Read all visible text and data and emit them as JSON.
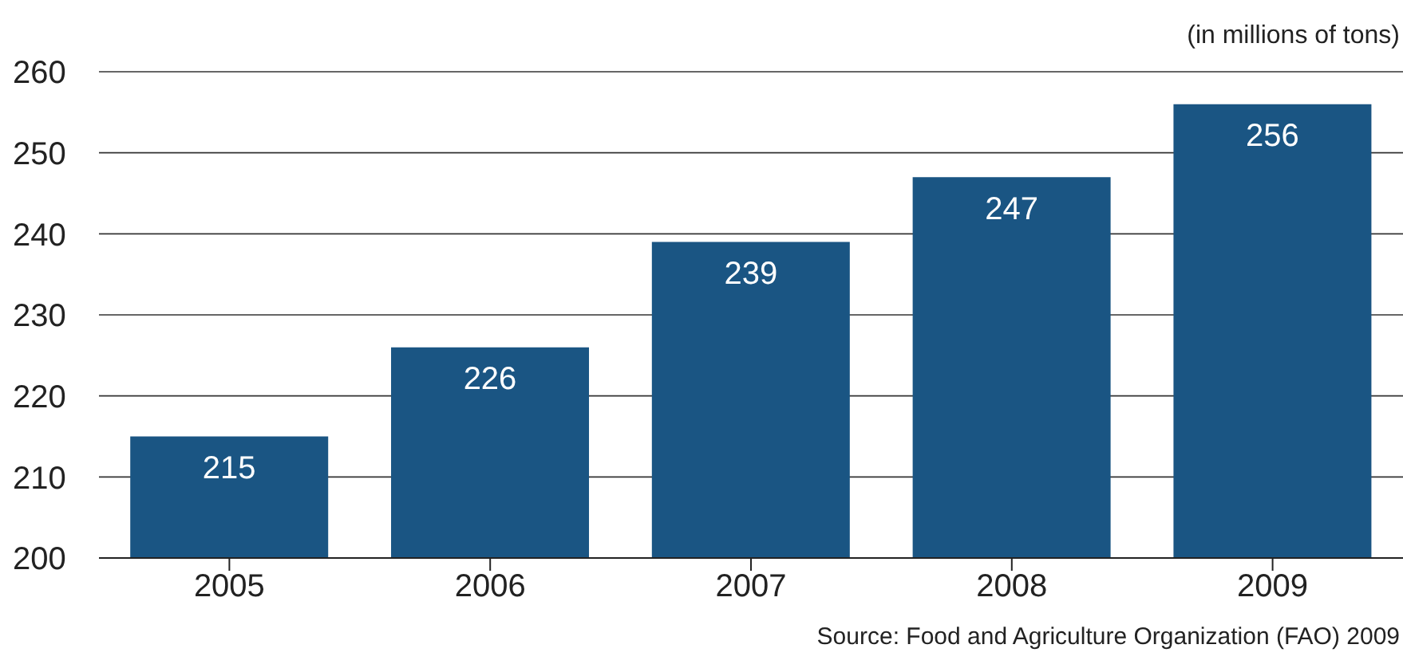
{
  "chart_data": {
    "type": "bar",
    "ylabel": "(in millions of tons)",
    "categories": [
      "2005",
      "2006",
      "2007",
      "2008",
      "2009"
    ],
    "values": [
      215,
      226,
      239,
      247,
      256
    ],
    "color": "#1a5583",
    "ylim": [
      200,
      260
    ],
    "yticks": [
      200,
      210,
      220,
      230,
      240,
      250,
      260
    ],
    "grid": "y",
    "data_labels": true,
    "annotations": [
      "Source: Food and Agriculture Organization (FAO) 2009"
    ]
  }
}
